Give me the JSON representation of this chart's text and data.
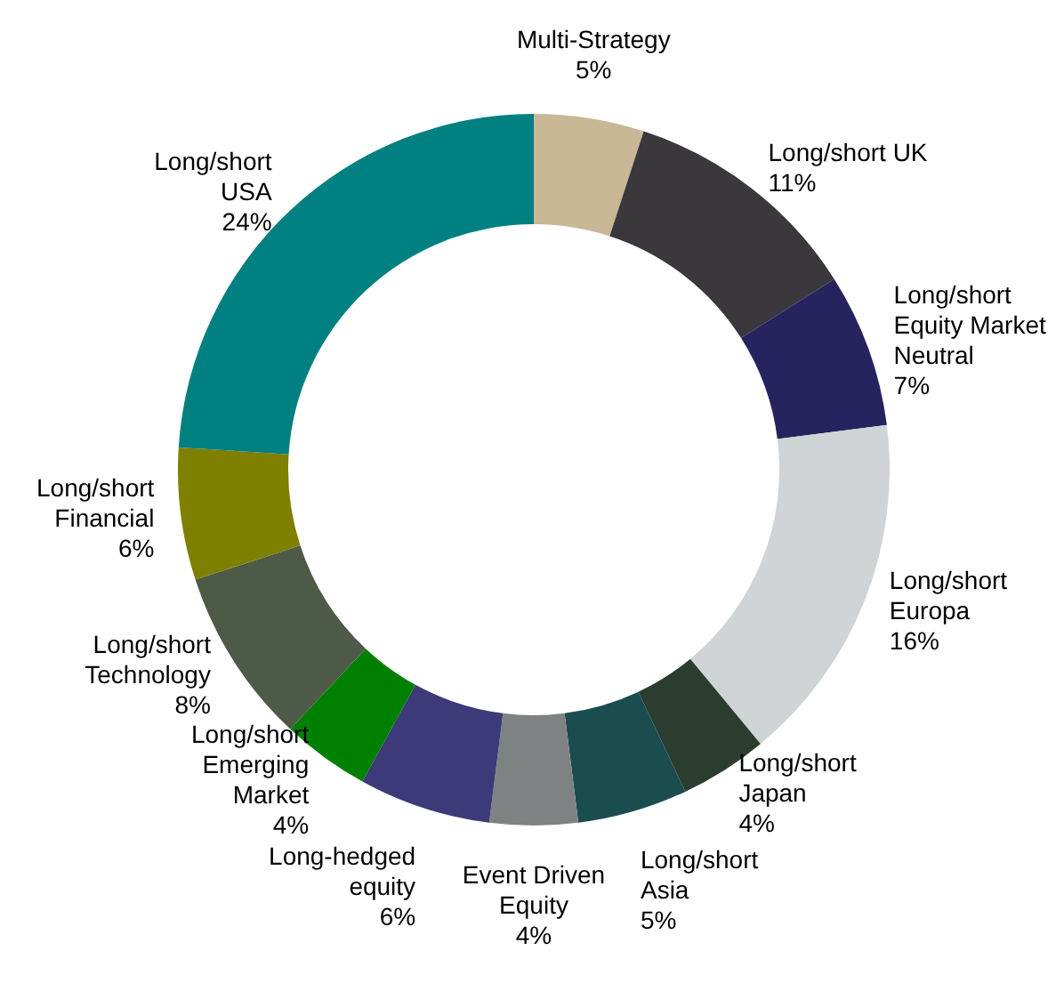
{
  "chart_data": {
    "type": "donut",
    "categories": [
      "Multi-Strategy",
      "Long/short UK",
      "Long/short\nEquity Market\nNeutral",
      "Long/short\nEuropa",
      "Long/short\nJapan",
      "Long/short\nAsia",
      "Event Driven\nEquity",
      "Long-hedged\nequity",
      "Long/short\nEmerging\nMarket",
      "Long/short\nTechnology",
      "Long/short\nFinancial",
      "Long/short\nUSA"
    ],
    "values": [
      5,
      11,
      7,
      16,
      4,
      5,
      4,
      6,
      4,
      8,
      6,
      24
    ],
    "value_labels": [
      "5%",
      "11%",
      "7%",
      "16%",
      "4%",
      "5%",
      "4%",
      "6%",
      "4%",
      "8%",
      "6%",
      "24%"
    ],
    "colors": [
      "#c8b896",
      "#3a383d",
      "#27235e",
      "#d0d4d6",
      "#2a3d2f",
      "#1b4d50",
      "#7f8283",
      "#3c3a78",
      "#008000",
      "#4d5a48",
      "#7f7f00",
      "#008080"
    ],
    "legend": false
  }
}
